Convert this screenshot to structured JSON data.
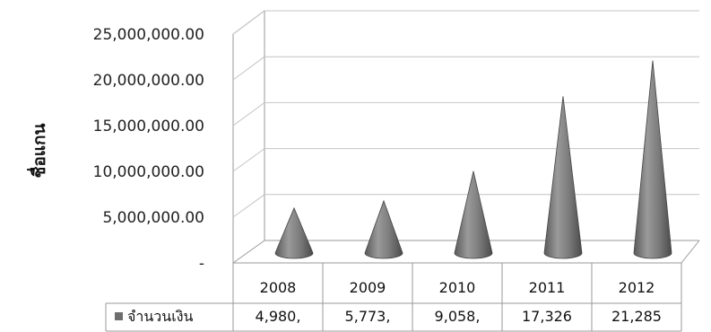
{
  "chart_data": {
    "type": "bar",
    "style": "3d-cone",
    "ylabel": "ชื่อแกน",
    "categories": [
      "2008",
      "2009",
      "2010",
      "2011",
      "2012"
    ],
    "series": [
      {
        "name": "จำนวนเงิน",
        "values": [
          4980000,
          5773000,
          9058000,
          17326000,
          21285000
        ],
        "table_labels": [
          "4,980,",
          "5,773,",
          "9,058,",
          "17,326",
          "21,285"
        ]
      }
    ],
    "yticks": [
      "-",
      "5,000,000.00",
      "10,000,000.00",
      "15,000,000.00",
      "20,000,000.00",
      "25,000,000.00"
    ],
    "ylim": [
      0,
      25000000
    ],
    "grid": true,
    "legend": "data-table",
    "colors": {
      "cone": "#7a7a7a",
      "grid": "#c4c4c4",
      "axis": "#333333"
    }
  }
}
